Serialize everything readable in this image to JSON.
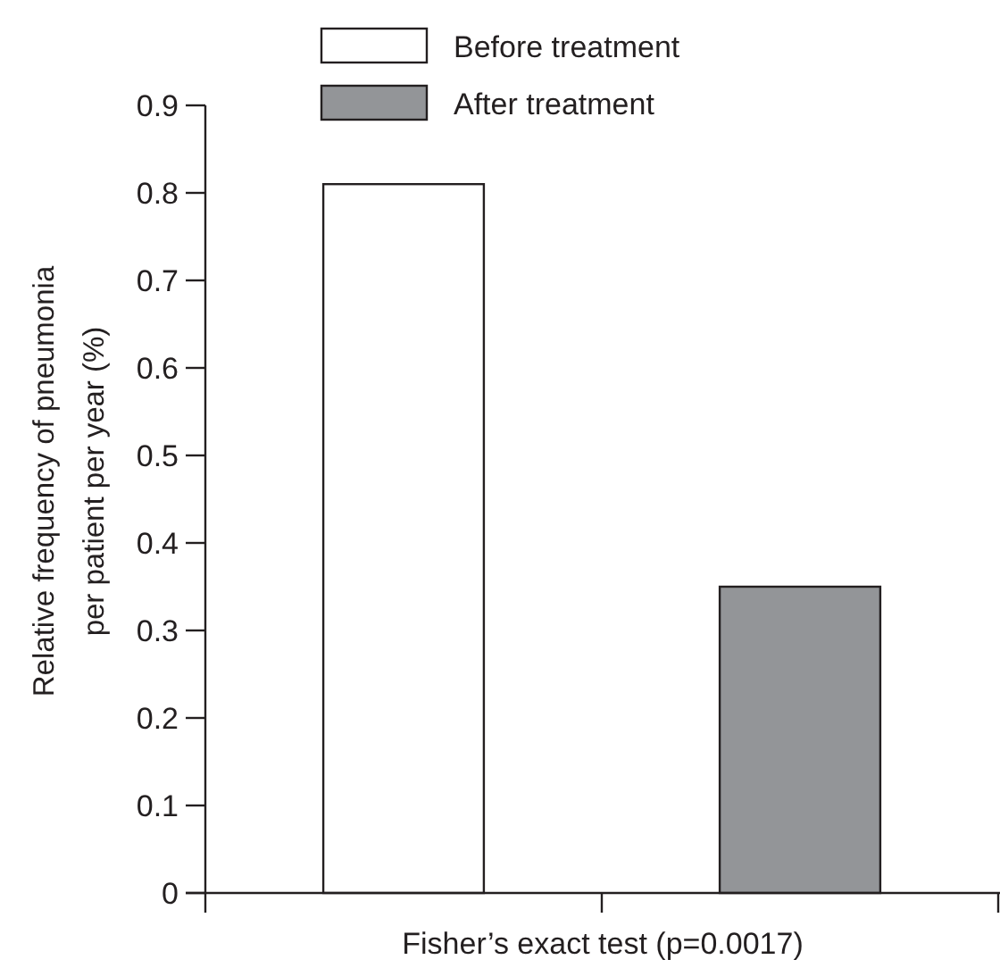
{
  "chart_data": {
    "type": "bar",
    "xlabel": "Fisher’s exact test (p=0.0017)",
    "ylabel": "Relative frequency of pneumonia\nper patient per year (%)",
    "categories": [
      null,
      null
    ],
    "series": [
      {
        "name": "Before treatment",
        "color": "#ffffff",
        "values": [
          0.81,
          null
        ]
      },
      {
        "name": "After treatment",
        "color": "#939598",
        "values": [
          null,
          0.35
        ]
      }
    ],
    "ylim": [
      0,
      0.9
    ],
    "yticks": [
      0,
      0.1,
      0.2,
      0.3,
      0.4,
      0.5,
      0.6,
      0.7,
      0.8,
      0.9
    ],
    "legend": "top",
    "grid": false
  }
}
